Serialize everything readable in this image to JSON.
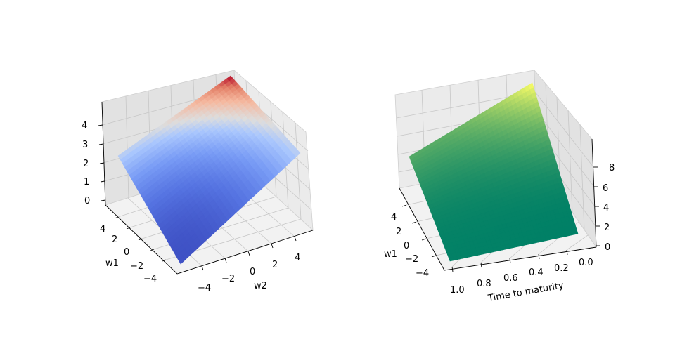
{
  "chart_data": [
    {
      "type": "surface",
      "colormap": "coolwarm",
      "xlabel": "w2",
      "ylabel": "w1",
      "zlabel": "",
      "x_range": [
        -5,
        5
      ],
      "y_range": [
        -5,
        5
      ],
      "z_range": [
        0,
        4.9
      ],
      "x_ticks": [
        "−4",
        "−2",
        "0",
        "2",
        "4"
      ],
      "y_ticks": [
        "−4",
        "−2",
        "0",
        "2",
        "4"
      ],
      "z_ticks": [
        "0",
        "1",
        "2",
        "3",
        "4"
      ],
      "grid": true,
      "z_at_corners": {
        "w1_min_w2_min": 0.1,
        "w1_max_w2_min": 2.4,
        "w1_min_w2_max": 2.4,
        "w1_max_w2_max": 4.9
      }
    },
    {
      "type": "surface",
      "colormap": "summer",
      "xlabel": "Time to maturity",
      "ylabel": "w1",
      "zlabel": "",
      "x_range": [
        1.0,
        0.0
      ],
      "y_range": [
        -5,
        5
      ],
      "z_range": [
        0,
        9
      ],
      "x_ticks": [
        "1.0",
        "0.8",
        "0.6",
        "0.4",
        "0.2",
        "0.0"
      ],
      "y_ticks": [
        "−4",
        "−2",
        "0",
        "2",
        "4"
      ],
      "z_ticks": [
        "0",
        "2",
        "4",
        "6",
        "8"
      ],
      "grid": true,
      "z_at_corners": {
        "w1_min_t_0": 0.0,
        "w1_min_t_1": 0.1,
        "w1_max_t_0": 9.0,
        "w1_max_t_1": 3.0
      }
    }
  ]
}
